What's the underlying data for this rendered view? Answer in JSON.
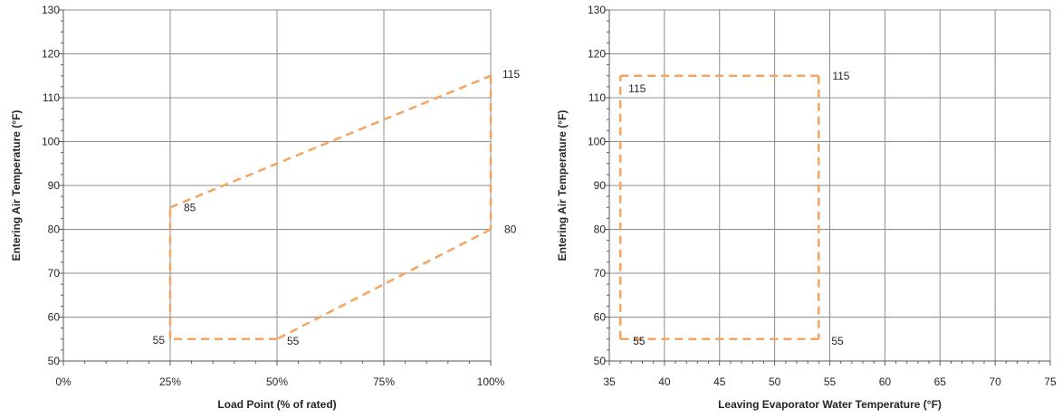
{
  "chart_data": [
    {
      "type": "line",
      "xlabel": "Load Point (% of rated)",
      "ylabel": "Entering Air Temperature (°F)",
      "xlim": [
        0,
        100
      ],
      "ylim": [
        50,
        130
      ],
      "x_ticks": [
        0,
        25,
        50,
        75,
        100
      ],
      "x_tick_labels": [
        "0%",
        "25%",
        "50%",
        "75%",
        "100%"
      ],
      "y_ticks": [
        50,
        60,
        70,
        80,
        90,
        100,
        110,
        120,
        130
      ],
      "y_tick_labels": [
        "50",
        "60",
        "70",
        "80",
        "90",
        "100",
        "110",
        "120",
        "130"
      ],
      "grid": "x-major and y-major",
      "series": [
        {
          "color": "#F4A460",
          "line_style": "dashed",
          "points": [
            [
              25,
              55
            ],
            [
              25,
              85
            ],
            [
              100,
              115
            ],
            [
              100,
              80
            ],
            [
              50,
              55
            ],
            [
              25,
              55
            ]
          ]
        }
      ],
      "annotations": [
        {
          "text": "85",
          "x": 25,
          "y": 85
        },
        {
          "text": "115",
          "x": 100,
          "y": 115
        },
        {
          "text": "80",
          "x": 100,
          "y": 80
        },
        {
          "text": "55",
          "x": 25,
          "y": 55
        },
        {
          "text": "55",
          "x": 50,
          "y": 55
        }
      ]
    },
    {
      "type": "line",
      "xlabel": "Leaving Evaporator Water Temperature (°F)",
      "ylabel": "Entering Air Temperature (°F)",
      "xlim": [
        35,
        75
      ],
      "ylim": [
        50,
        130
      ],
      "x_ticks": [
        35,
        40,
        45,
        50,
        55,
        60,
        65,
        70,
        75
      ],
      "x_tick_labels": [
        "35",
        "40",
        "45",
        "50",
        "55",
        "60",
        "65",
        "70",
        "75"
      ],
      "y_ticks": [
        50,
        60,
        70,
        80,
        90,
        100,
        110,
        120,
        130
      ],
      "y_tick_labels": [
        "50",
        "60",
        "70",
        "80",
        "90",
        "100",
        "110",
        "120",
        "130"
      ],
      "grid": "x-major and y-major",
      "series": [
        {
          "color": "#F4A460",
          "line_style": "dashed",
          "points": [
            [
              36,
              55
            ],
            [
              36,
              115
            ],
            [
              54,
              115
            ],
            [
              54,
              55
            ],
            [
              36,
              55
            ]
          ]
        }
      ],
      "annotations": [
        {
          "text": "115",
          "x": 36,
          "y": 115
        },
        {
          "text": "115",
          "x": 54,
          "y": 115
        },
        {
          "text": "55",
          "x": 36,
          "y": 55
        },
        {
          "text": "55",
          "x": 54,
          "y": 55
        }
      ]
    }
  ]
}
